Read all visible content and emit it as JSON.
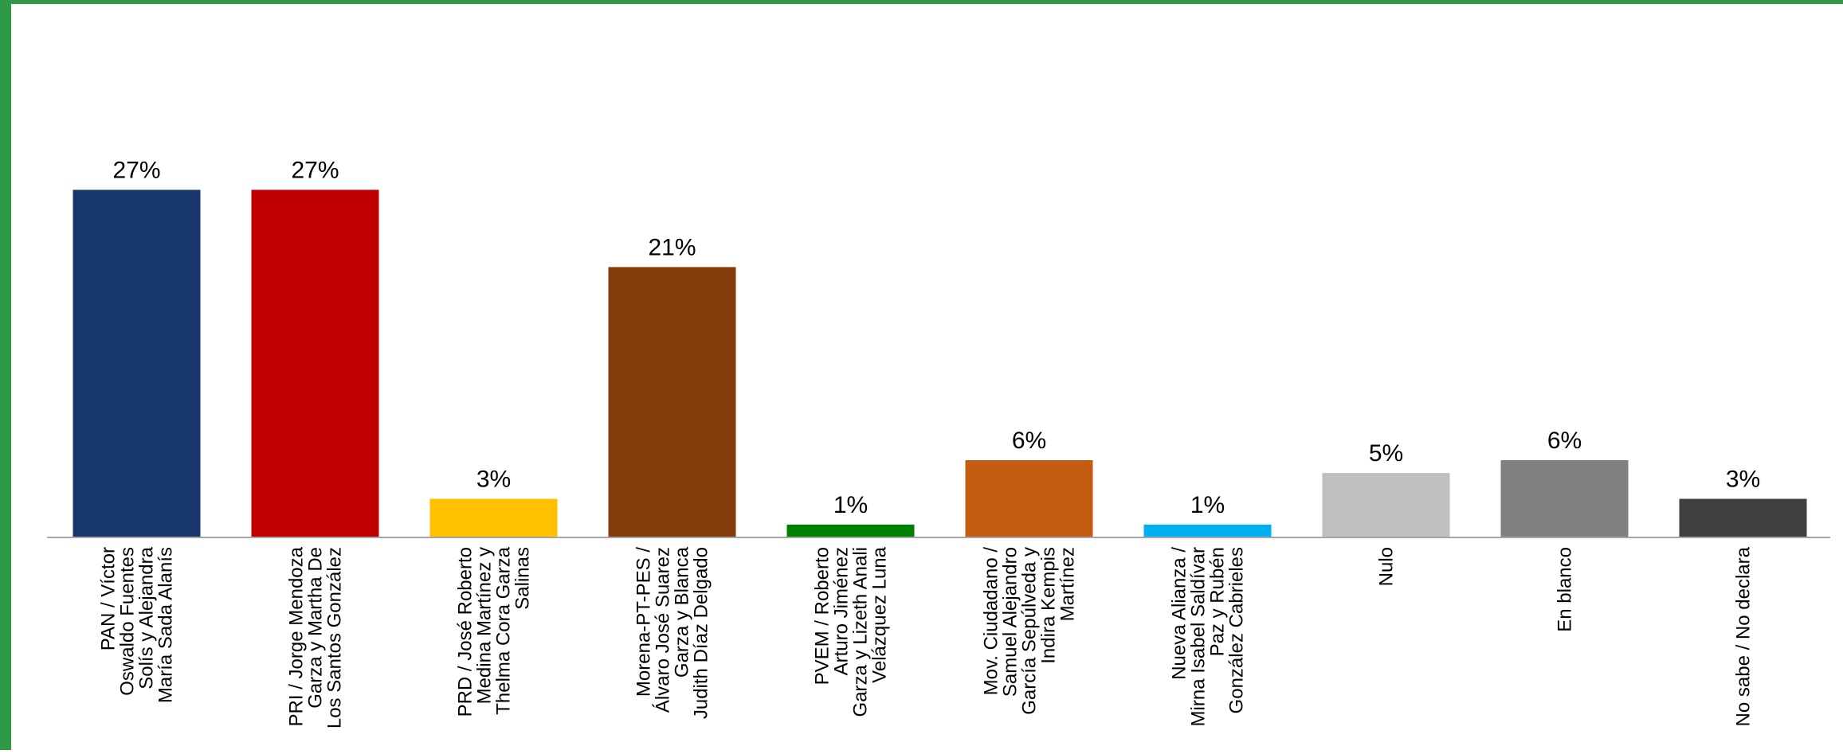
{
  "chart_data": {
    "type": "bar",
    "title": "",
    "xlabel": "",
    "ylabel": "",
    "ylim": [
      0,
      30
    ],
    "grid": false,
    "legend": "none",
    "categories": [
      [
        "PAN / Víctor",
        "Oswaldo Fuentes",
        "Solís  y Alejandra",
        "María Sada Alanís"
      ],
      [
        "PRI / Jorge Mendoza",
        "Garza y Martha De",
        "Los Santos González"
      ],
      [
        "PRD / José Roberto",
        "Medina Martínez  y",
        "Thelma Cora Garza",
        "Salinas"
      ],
      [
        "Morena-PT-PES /",
        "Álvaro José Suarez",
        "Garza  y Blanca",
        "Judith Díaz Delgado"
      ],
      [
        "PVEM / Roberto",
        "Arturo Jiménez",
        "Garza  y Lizeth Anali",
        "Velázquez Luna"
      ],
      [
        "Mov. Ciudadano /",
        "Samuel Alejandro",
        "García Sepúlveda  y",
        "Indira Kempis",
        "Martínez"
      ],
      [
        "Nueva Alianza /",
        "Mirna Isabel Saldívar",
        "Paz  y Rubén",
        "González Cabrieles"
      ],
      [
        "Nulo"
      ],
      [
        "En blanco"
      ],
      [
        "No sabe / No declara"
      ]
    ],
    "values": [
      27,
      27,
      3,
      21,
      1,
      6,
      1,
      5,
      6,
      3
    ],
    "value_labels": [
      "27%",
      "27%",
      "3%",
      "21%",
      "1%",
      "6%",
      "1%",
      "5%",
      "6%",
      "3%"
    ],
    "colors": [
      "#17376c",
      "#c00000",
      "#ffc000",
      "#843c0c",
      "#008000",
      "#c55a11",
      "#00b0f0",
      "#bfbfbf",
      "#808080",
      "#404040"
    ]
  }
}
